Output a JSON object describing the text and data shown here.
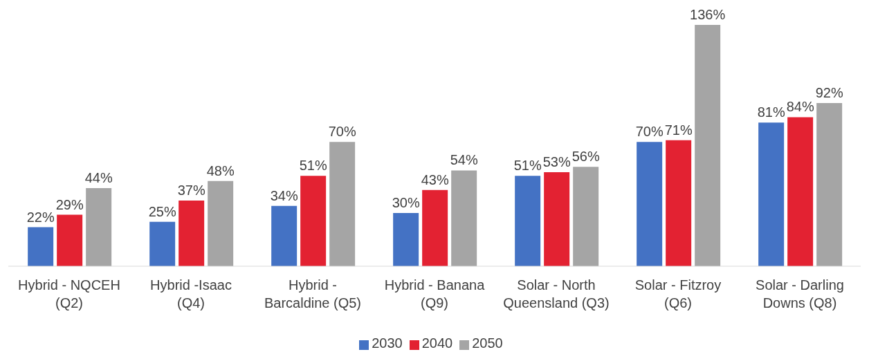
{
  "chart_data": {
    "type": "bar",
    "categories": [
      "Hybrid - NQCEH (Q2)",
      "Hybrid -Isaac (Q4)",
      "Hybrid - Barcaldine (Q5)",
      "Hybrid - Banana (Q9)",
      "Solar - North Queensland (Q3)",
      "Solar - Fitzroy (Q6)",
      "Solar - Darling Downs (Q8)"
    ],
    "series": [
      {
        "name": "2030",
        "color": "#4472c4",
        "values": [
          22,
          25,
          34,
          30,
          51,
          70,
          81
        ],
        "value_labels": [
          "22%",
          "25%",
          "34%",
          "30%",
          "51%",
          "70%",
          "81%"
        ]
      },
      {
        "name": "2040",
        "color": "#e32232",
        "values": [
          29,
          37,
          51,
          43,
          53,
          71,
          84
        ],
        "value_labels": [
          "29%",
          "37%",
          "51%",
          "43%",
          "53%",
          "71%",
          "84%"
        ]
      },
      {
        "name": "2050",
        "color": "#a5a5a5",
        "values": [
          44,
          48,
          70,
          54,
          56,
          136,
          92
        ],
        "value_labels": [
          "44%",
          "48%",
          "70%",
          "54%",
          "56%",
          "136%",
          "92%"
        ]
      }
    ],
    "legend": "bottom"
  }
}
